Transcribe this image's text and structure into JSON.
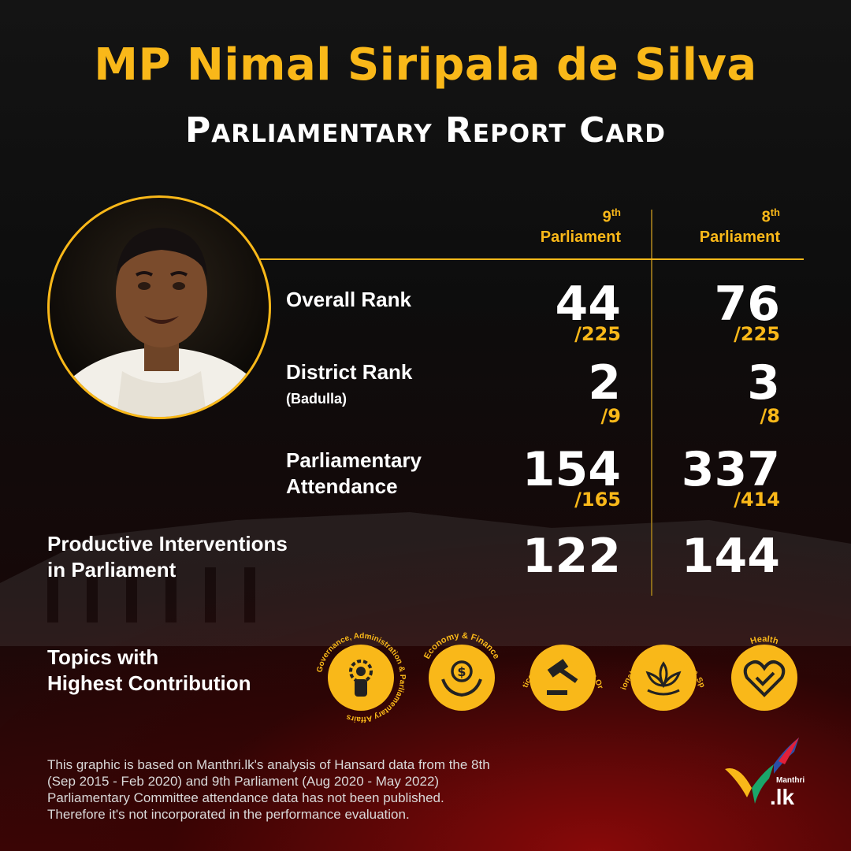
{
  "title": {
    "line1": "MP Nimal Siripala de Silva",
    "line2": "Parliamentary Report Card"
  },
  "columns": [
    {
      "num": "9",
      "sup": "th",
      "label": "Parliament"
    },
    {
      "num": "8",
      "sup": "th",
      "label": "Parliament"
    }
  ],
  "rows": {
    "overall": {
      "label": "Overall Rank",
      "p9": {
        "value": "44",
        "of": "/225"
      },
      "p8": {
        "value": "76",
        "of": "/225"
      }
    },
    "district": {
      "label": "District Rank",
      "sub": "(Badulla)",
      "p9": {
        "value": "2",
        "of": "/9"
      },
      "p8": {
        "value": "3",
        "of": "/8"
      }
    },
    "attendance": {
      "label_line1": "Parliamentary",
      "label_line2": "Attendance",
      "p9": {
        "value": "154",
        "of": "/165"
      },
      "p8": {
        "value": "337",
        "of": "/414"
      }
    },
    "interventions": {
      "label_line1": "Productive Interventions",
      "label_line2": "in Parliament",
      "p9": {
        "value": "122"
      },
      "p8": {
        "value": "144"
      }
    }
  },
  "topics": {
    "label_line1": "Topics with",
    "label_line2": "Highest Contribution",
    "items": [
      {
        "name": "Governance, Administration & Parliamentary Affairs",
        "icon": "person-gear-icon"
      },
      {
        "name": "Economy & Finance",
        "icon": "money-hands-icon"
      },
      {
        "name": "Justice, Defense & Public Order",
        "icon": "gavel-icon"
      },
      {
        "name": "National Heritage, Media & Sports",
        "icon": "lotus-icon"
      },
      {
        "name": "Health",
        "icon": "heart-check-icon"
      }
    ]
  },
  "footnote": {
    "line1": "This graphic is based on Manthri.lk's analysis of Hansard data from the 8th",
    "line2": "(Sep 2015 - Feb 2020) and 9th Parliament (Aug 2020 - May 2022)",
    "line3": "Parliamentary Committee attendance data has not been published.",
    "line4": "Therefore it's not incorporated in the performance evaluation."
  },
  "logo": {
    "small": "Manthri",
    "big": ".lk"
  },
  "colors": {
    "accent": "#f9b819",
    "background": "#0d0d0d",
    "text": "#ffffff"
  }
}
